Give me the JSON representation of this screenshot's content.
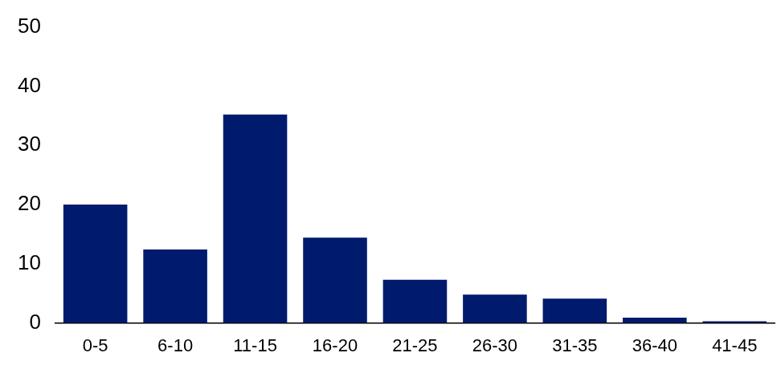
{
  "chart_data": {
    "type": "bar",
    "categories": [
      "0-5",
      "6-10",
      "11-15",
      "16-20",
      "21-25",
      "26-30",
      "31-35",
      "36-40",
      "41-45"
    ],
    "values": [
      20.0,
      12.4,
      35.2,
      14.4,
      7.3,
      4.8,
      4.1,
      0.9,
      0.3
    ],
    "color": "#001a6e",
    "ylim": [
      0,
      50
    ],
    "yticks": [
      0,
      10,
      20,
      30,
      40,
      50
    ],
    "grid": false
  }
}
